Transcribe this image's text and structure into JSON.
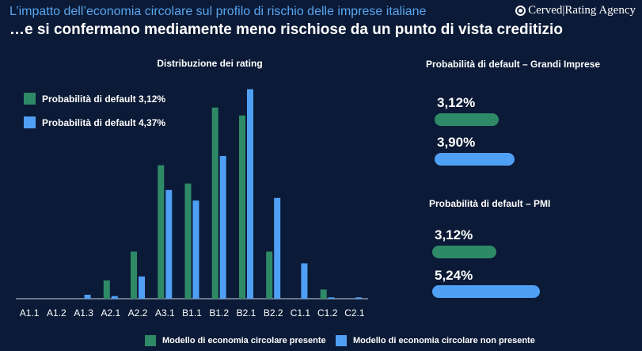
{
  "header": {
    "kicker": "L’impatto dell’economia circolare sul profilo di rischio delle imprese italiane",
    "headline": "…e si confermano mediamente meno rischiose da un punto di vista creditizio",
    "logo_text": "Cerved|Rating Agency"
  },
  "colors": {
    "background": "#0b1a36",
    "green": "#2e8a66",
    "blue": "#4fa0f5",
    "kicker": "#58a6f0"
  },
  "chart_data": {
    "type": "bar",
    "title": "Distribuzione dei rating",
    "categories": [
      "A1.1",
      "A1.2",
      "A1.3",
      "A2.1",
      "A2.2",
      "A3.1",
      "B1.1",
      "B1.2",
      "B2.1",
      "B2.2",
      "C1.1",
      "C1.2",
      "C2.1"
    ],
    "series": [
      {
        "name": "Modello di economia circolare presente",
        "color": "#2e8a66",
        "values": [
          0,
          0,
          0,
          7,
          18,
          51,
          44,
          73,
          70,
          18,
          0,
          3.5,
          0
        ]
      },
      {
        "name": "Modello di economia circolare non presente",
        "color": "#4fa0f5",
        "values": [
          0,
          0,
          1.5,
          1,
          8.5,
          41.5,
          37.5,
          54.5,
          80,
          38.5,
          13.5,
          0.5,
          0.5
        ]
      }
    ],
    "ylim": [
      0,
      82
    ],
    "grid": false,
    "inner_legend": [
      {
        "label": "Probabilità di default  3,12%",
        "color": "#2e8a66"
      },
      {
        "label": "Probabilità di default  4,37%",
        "color": "#4fa0f5"
      }
    ]
  },
  "side": {
    "grandi": {
      "title": "Probabilità di default – Grandi Imprese",
      "items": [
        {
          "value_label": "3,12%",
          "value": 3.12,
          "color": "#2e8a66"
        },
        {
          "value_label": "3,90%",
          "value": 3.9,
          "color": "#4fa0f5"
        }
      ]
    },
    "pmi": {
      "title": "Probabilità di default – PMI",
      "items": [
        {
          "value_label": "3,12%",
          "value": 3.12,
          "color": "#2e8a66"
        },
        {
          "value_label": "5,24%",
          "value": 5.24,
          "color": "#4fa0f5"
        }
      ]
    }
  },
  "legend": {
    "present": "Modello di economia circolare presente",
    "absent": "Modello di economia circolare non presente"
  }
}
